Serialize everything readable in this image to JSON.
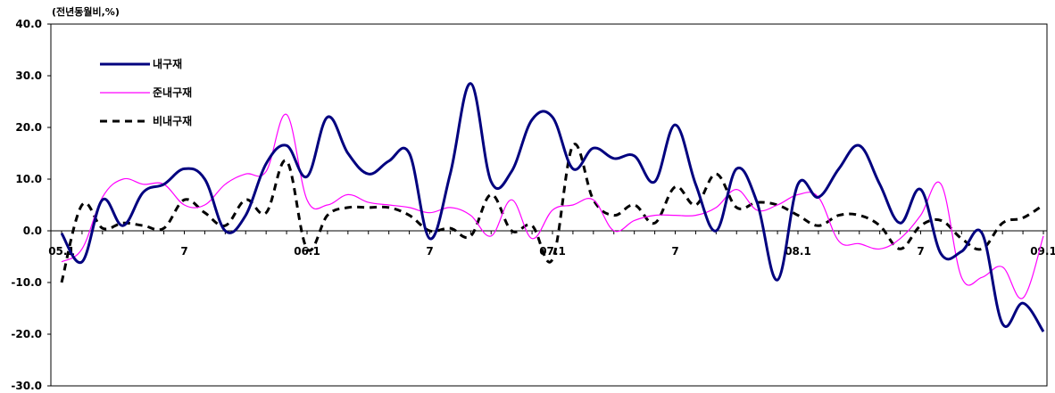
{
  "chart_data": {
    "type": "line",
    "unit_label": "(전년동월비,%)",
    "ylim": [
      -30,
      40
    ],
    "y_ticks": [
      40,
      30,
      20,
      10,
      0,
      -10,
      -20,
      -30
    ],
    "y_tick_labels": [
      "40.0",
      "30.0",
      "20.0",
      "10.0",
      "0.0",
      "-10.0",
      "-20.0",
      "-30.0"
    ],
    "x_tick_labels": [
      {
        "month": 0,
        "label": "05.1"
      },
      {
        "month": 6,
        "label": "7"
      },
      {
        "month": 12,
        "label": "06.1"
      },
      {
        "month": 18,
        "label": "7"
      },
      {
        "month": 24,
        "label": "07.1"
      },
      {
        "month": 30,
        "label": "7"
      },
      {
        "month": 36,
        "label": "08.1"
      },
      {
        "month": 42,
        "label": "7"
      },
      {
        "month": 48,
        "label": "09.1"
      }
    ],
    "grid": false,
    "legend_position": "top-left",
    "series": [
      {
        "name": "내구재",
        "color": "#00007f",
        "style": "solid",
        "values": [
          -0.5,
          -6,
          6,
          1,
          7.5,
          9,
          12,
          10,
          0,
          3,
          13,
          16.5,
          10.5,
          22,
          15,
          11,
          13.5,
          15,
          -1.5,
          11,
          28.5,
          9.5,
          11.5,
          21.5,
          22,
          12,
          16,
          14,
          14.5,
          9.5,
          20.5,
          9,
          0,
          12,
          5.5,
          -9.5,
          9,
          6.5,
          12,
          16.5,
          9,
          1.5,
          8,
          -4.5,
          -4,
          -0.5,
          -18,
          -14,
          -19.5
        ]
      },
      {
        "name": "준내구재",
        "color": "#ff00ff",
        "style": "solid",
        "values": [
          -6,
          -3.5,
          6.5,
          10,
          9,
          9,
          5,
          5,
          9,
          11,
          11.5,
          22.5,
          6,
          5,
          7,
          5.5,
          5,
          4.5,
          3.5,
          4.5,
          3,
          -1,
          6,
          -1.5,
          4,
          5,
          6,
          0,
          2,
          3,
          3,
          3,
          4.5,
          8,
          4,
          5,
          7,
          6.5,
          -2,
          -2.5,
          -3.5,
          -1.5,
          3,
          9,
          -9,
          -9,
          -7,
          -13,
          -1
        ]
      },
      {
        "name": "비내구재",
        "color": "#000000",
        "style": "dashed",
        "values": [
          -10,
          5,
          0.5,
          1.5,
          1,
          0.5,
          6,
          3.5,
          1,
          6,
          3.5,
          13.5,
          -3.5,
          3,
          4.5,
          4.5,
          4.5,
          3,
          0,
          0.5,
          -1,
          7,
          0,
          1,
          -5.5,
          16.5,
          6,
          3,
          5,
          1.5,
          8.5,
          5,
          11,
          4.5,
          5.5,
          5,
          3,
          1,
          3,
          3,
          1,
          -3.5,
          1,
          2,
          -1.5,
          -3.5,
          1.5,
          2.5,
          5
        ]
      }
    ]
  }
}
